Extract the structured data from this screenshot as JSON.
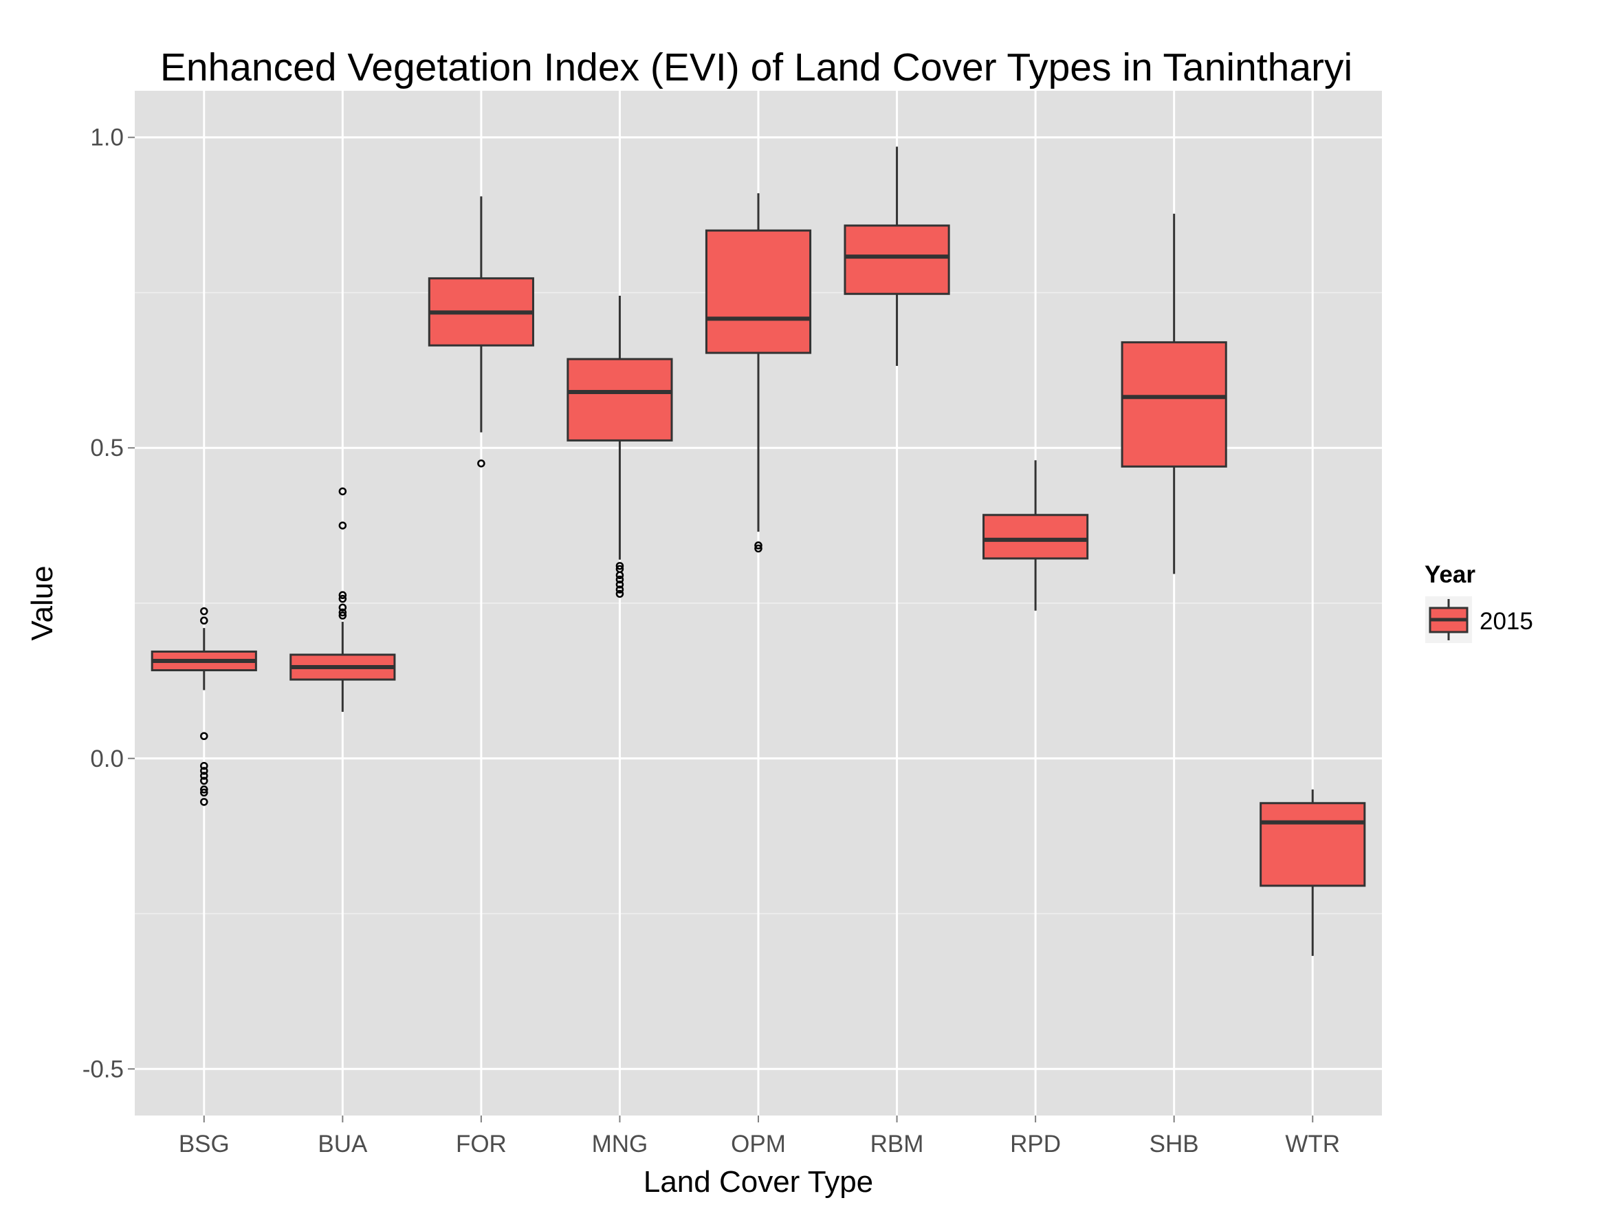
{
  "chart_data": {
    "type": "boxplot",
    "title": "Enhanced Vegetation Index (EVI) of Land Cover Types in Tanintharyi",
    "xlabel": "Land Cover Type",
    "ylabel": "Value",
    "ylim": [
      -0.575,
      1.075
    ],
    "yticks": [
      -0.5,
      0.0,
      0.5,
      1.0
    ],
    "ytick_labels": [
      "-0.5",
      "0.0",
      "0.5",
      "1.0"
    ],
    "grid": true,
    "legend": {
      "title": "Year",
      "position": "right",
      "entries": [
        "2015"
      ]
    },
    "fill_color": "#f35e5a",
    "categories": [
      "BSG",
      "BUA",
      "FOR",
      "MNG",
      "OPM",
      "RBM",
      "RPD",
      "SHB",
      "WTR"
    ],
    "boxes": [
      {
        "category": "BSG",
        "whisker_low": 0.11,
        "q1": 0.142,
        "median": 0.157,
        "q3": 0.172,
        "whisker_high": 0.21,
        "outliers": [
          0.237,
          0.222,
          0.036,
          -0.012,
          -0.02,
          -0.028,
          -0.036,
          -0.05,
          -0.055,
          -0.07
        ]
      },
      {
        "category": "BUA",
        "whisker_low": 0.075,
        "q1": 0.127,
        "median": 0.147,
        "q3": 0.167,
        "whisker_high": 0.22,
        "outliers": [
          0.43,
          0.375,
          0.263,
          0.257,
          0.243,
          0.235,
          0.23
        ]
      },
      {
        "category": "FOR",
        "whisker_low": 0.525,
        "q1": 0.665,
        "median": 0.718,
        "q3": 0.773,
        "whisker_high": 0.905,
        "outliers": [
          0.475
        ]
      },
      {
        "category": "MNG",
        "whisker_low": 0.32,
        "q1": 0.512,
        "median": 0.59,
        "q3": 0.643,
        "whisker_high": 0.745,
        "outliers": [
          0.31,
          0.305,
          0.295,
          0.288,
          0.28,
          0.272,
          0.265
        ]
      },
      {
        "category": "OPM",
        "whisker_low": 0.365,
        "q1": 0.653,
        "median": 0.708,
        "q3": 0.85,
        "whisker_high": 0.91,
        "outliers": [
          0.343,
          0.338
        ]
      },
      {
        "category": "RBM",
        "whisker_low": 0.632,
        "q1": 0.748,
        "median": 0.808,
        "q3": 0.858,
        "whisker_high": 0.985,
        "outliers": []
      },
      {
        "category": "RPD",
        "whisker_low": 0.238,
        "q1": 0.322,
        "median": 0.352,
        "q3": 0.392,
        "whisker_high": 0.48,
        "outliers": []
      },
      {
        "category": "SHB",
        "whisker_low": 0.297,
        "q1": 0.47,
        "median": 0.582,
        "q3": 0.67,
        "whisker_high": 0.877,
        "outliers": []
      },
      {
        "category": "WTR",
        "whisker_low": -0.318,
        "q1": -0.205,
        "median": -0.103,
        "q3": -0.072,
        "whisker_high": -0.05,
        "outliers": []
      }
    ]
  }
}
